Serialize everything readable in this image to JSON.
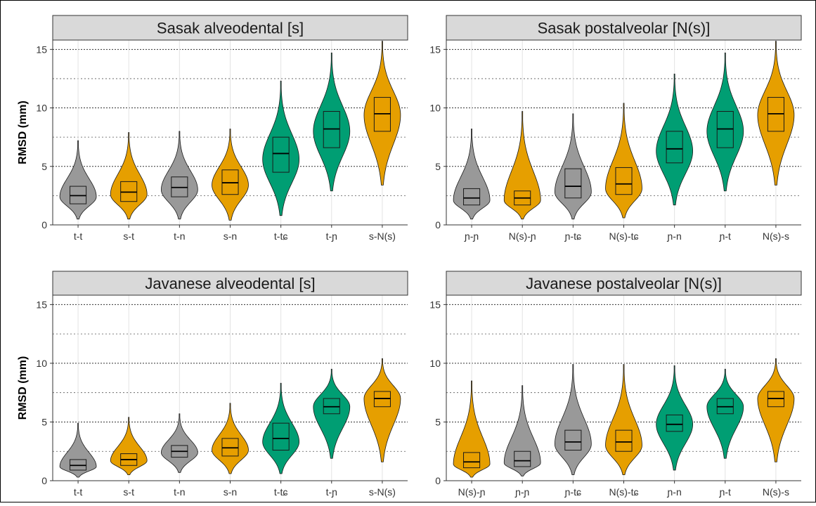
{
  "figure": {
    "ylabel": "RMSD (mm)"
  },
  "colors": {
    "grey": "#999999",
    "orange": "#E69F00",
    "green": "#009E73",
    "strip": "#d9d9d9"
  },
  "chart_data": [
    {
      "type": "violin",
      "title": "Sasak alveodental [s]",
      "ylabel": "RMSD (mm)",
      "ylim": [
        0,
        15.8
      ],
      "yticks": [
        0,
        5,
        10,
        15
      ],
      "categories": [
        "t-t",
        "s-t",
        "t-n",
        "s-n",
        "t-tɕ",
        "t-ɲ",
        "s-N(s)"
      ],
      "series": [
        {
          "category": "t-t",
          "color": "grey",
          "min": 0.5,
          "q1": 1.8,
          "median": 2.5,
          "q3": 3.3,
          "max": 7.2,
          "peak": 2.4
        },
        {
          "category": "s-t",
          "color": "orange",
          "min": 0.5,
          "q1": 2.0,
          "median": 2.8,
          "q3": 3.7,
          "max": 7.9,
          "peak": 2.6
        },
        {
          "category": "t-n",
          "color": "grey",
          "min": 0.5,
          "q1": 2.4,
          "median": 3.2,
          "q3": 4.1,
          "max": 8.0,
          "peak": 3.0
        },
        {
          "category": "s-n",
          "color": "orange",
          "min": 0.4,
          "q1": 2.6,
          "median": 3.6,
          "q3": 4.7,
          "max": 8.2,
          "peak": 3.4
        },
        {
          "category": "t-tɕ",
          "color": "green",
          "min": 0.8,
          "q1": 4.5,
          "median": 6.1,
          "q3": 7.5,
          "max": 12.3,
          "peak": 5.6
        },
        {
          "category": "t-ɲ",
          "color": "green",
          "min": 2.9,
          "q1": 6.6,
          "median": 8.2,
          "q3": 9.7,
          "max": 14.7,
          "peak": 8.0
        },
        {
          "category": "s-N(s)",
          "color": "orange",
          "min": 3.4,
          "q1": 8.0,
          "median": 9.5,
          "q3": 10.9,
          "max": 15.7,
          "peak": 9.4
        }
      ]
    },
    {
      "type": "violin",
      "title": "Sasak postalveolar [N(s)]",
      "ylabel": "",
      "ylim": [
        0,
        15.8
      ],
      "yticks": [
        0,
        5,
        10,
        15
      ],
      "categories": [
        "ɲ-ɲ",
        "N(s)-ɲ",
        "ɲ-tɕ",
        "N(s)-tɕ",
        "ɲ-n",
        "ɲ-t",
        "N(s)-s"
      ],
      "series": [
        {
          "category": "ɲ-ɲ",
          "color": "grey",
          "min": 0.5,
          "q1": 1.7,
          "median": 2.3,
          "q3": 3.1,
          "max": 8.2,
          "peak": 2.1
        },
        {
          "category": "N(s)-ɲ",
          "color": "orange",
          "min": 0.5,
          "q1": 1.7,
          "median": 2.3,
          "q3": 2.9,
          "max": 9.7,
          "peak": 2.1
        },
        {
          "category": "ɲ-tɕ",
          "color": "grey",
          "min": 0.5,
          "q1": 2.3,
          "median": 3.3,
          "q3": 4.8,
          "max": 9.5,
          "peak": 2.8
        },
        {
          "category": "N(s)-tɕ",
          "color": "orange",
          "min": 0.6,
          "q1": 2.6,
          "median": 3.5,
          "q3": 4.9,
          "max": 10.4,
          "peak": 3.1
        },
        {
          "category": "ɲ-n",
          "color": "green",
          "min": 1.7,
          "q1": 5.3,
          "median": 6.5,
          "q3": 8.0,
          "max": 12.9,
          "peak": 6.3
        },
        {
          "category": "ɲ-t",
          "color": "green",
          "min": 2.9,
          "q1": 6.6,
          "median": 8.2,
          "q3": 9.7,
          "max": 14.7,
          "peak": 8.0
        },
        {
          "category": "N(s)-s",
          "color": "orange",
          "min": 3.4,
          "q1": 8.0,
          "median": 9.5,
          "q3": 10.9,
          "max": 15.7,
          "peak": 9.4
        }
      ]
    },
    {
      "type": "violin",
      "title": "Javanese alveodental [s]",
      "ylabel": "RMSD (mm)",
      "ylim": [
        0,
        15.8
      ],
      "yticks": [
        0,
        5,
        10,
        15
      ],
      "categories": [
        "t-t",
        "s-t",
        "t-n",
        "s-n",
        "t-tɕ",
        "t-ɲ",
        "s-N(s)"
      ],
      "series": [
        {
          "category": "t-t",
          "color": "grey",
          "min": 0.3,
          "q1": 0.9,
          "median": 1.3,
          "q3": 1.8,
          "max": 4.9,
          "peak": 1.2
        },
        {
          "category": "s-t",
          "color": "orange",
          "min": 0.5,
          "q1": 1.3,
          "median": 1.8,
          "q3": 2.3,
          "max": 5.4,
          "peak": 1.7
        },
        {
          "category": "t-n",
          "color": "grey",
          "min": 0.7,
          "q1": 2.0,
          "median": 2.5,
          "q3": 3.0,
          "max": 5.7,
          "peak": 2.4
        },
        {
          "category": "s-n",
          "color": "orange",
          "min": 0.6,
          "q1": 2.1,
          "median": 2.8,
          "q3": 3.6,
          "max": 6.6,
          "peak": 2.6
        },
        {
          "category": "t-tɕ",
          "color": "green",
          "min": 0.6,
          "q1": 2.6,
          "median": 3.6,
          "q3": 4.9,
          "max": 8.3,
          "peak": 3.3
        },
        {
          "category": "t-ɲ",
          "color": "green",
          "min": 1.9,
          "q1": 5.7,
          "median": 6.3,
          "q3": 7.0,
          "max": 9.5,
          "peak": 6.3
        },
        {
          "category": "s-N(s)",
          "color": "orange",
          "min": 1.6,
          "q1": 6.3,
          "median": 7.0,
          "q3": 7.6,
          "max": 10.4,
          "peak": 7.0
        }
      ]
    },
    {
      "type": "violin",
      "title": "Javanese postalveolar [N(s)]",
      "ylabel": "",
      "ylim": [
        0,
        15.8
      ],
      "yticks": [
        0,
        5,
        10,
        15
      ],
      "categories": [
        "N(s)-ɲ",
        "ɲ-ɲ",
        "ɲ-tɕ",
        "N(s)-tɕ",
        "ɲ-n",
        "ɲ-t",
        "N(s)-s"
      ],
      "series": [
        {
          "category": "N(s)-ɲ",
          "color": "orange",
          "min": 0.3,
          "q1": 1.1,
          "median": 1.6,
          "q3": 2.4,
          "max": 8.5,
          "peak": 1.4
        },
        {
          "category": "ɲ-ɲ",
          "color": "grey",
          "min": 0.4,
          "q1": 1.2,
          "median": 1.7,
          "q3": 2.5,
          "max": 8.1,
          "peak": 1.5
        },
        {
          "category": "ɲ-tɕ",
          "color": "grey",
          "min": 0.5,
          "q1": 2.6,
          "median": 3.3,
          "q3": 4.3,
          "max": 9.9,
          "peak": 3.1
        },
        {
          "category": "N(s)-tɕ",
          "color": "orange",
          "min": 0.5,
          "q1": 2.5,
          "median": 3.3,
          "q3": 4.3,
          "max": 9.9,
          "peak": 3.0
        },
        {
          "category": "ɲ-n",
          "color": "green",
          "min": 0.9,
          "q1": 4.2,
          "median": 4.8,
          "q3": 5.6,
          "max": 9.8,
          "peak": 4.8
        },
        {
          "category": "ɲ-t",
          "color": "green",
          "min": 1.9,
          "q1": 5.7,
          "median": 6.3,
          "q3": 7.0,
          "max": 9.5,
          "peak": 6.3
        },
        {
          "category": "N(s)-s",
          "color": "orange",
          "min": 1.6,
          "q1": 6.3,
          "median": 7.0,
          "q3": 7.6,
          "max": 10.4,
          "peak": 7.0
        }
      ]
    }
  ]
}
